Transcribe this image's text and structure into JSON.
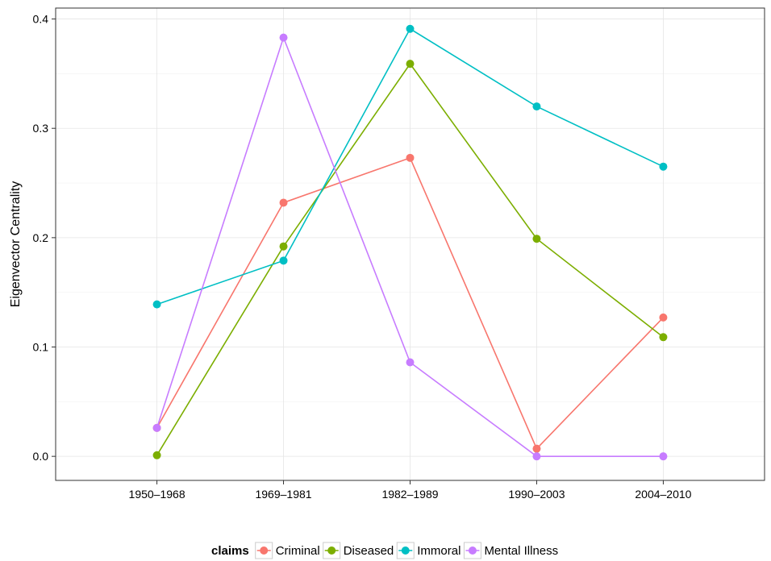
{
  "chart_data": {
    "type": "line",
    "categories": [
      "1950–1968",
      "1969–1981",
      "1982–1989",
      "1990–2003",
      "2004–2010"
    ],
    "ylabel": "Eigenvector Centrality",
    "ylim": [
      -0.022,
      0.41
    ],
    "yticks": [
      0.0,
      0.1,
      0.2,
      0.3,
      0.4
    ],
    "ytick_labels": [
      "0.0",
      "0.1",
      "0.2",
      "0.3",
      "0.4"
    ],
    "grid": true,
    "legend_title": "claims",
    "legend_position": "bottom",
    "series": [
      {
        "name": "Criminal",
        "color": "#F8766D",
        "values": [
          0.026,
          0.232,
          0.273,
          0.007,
          0.127
        ]
      },
      {
        "name": "Diseased",
        "color": "#7CAE00",
        "values": [
          0.001,
          0.192,
          0.359,
          0.199,
          0.109
        ]
      },
      {
        "name": "Immoral",
        "color": "#00BFC4",
        "values": [
          0.139,
          0.179,
          0.391,
          0.32,
          0.265
        ]
      },
      {
        "name": "Mental Illness",
        "color": "#C77CFF",
        "values": [
          0.026,
          0.383,
          0.086,
          0.0,
          0.0
        ]
      }
    ]
  }
}
